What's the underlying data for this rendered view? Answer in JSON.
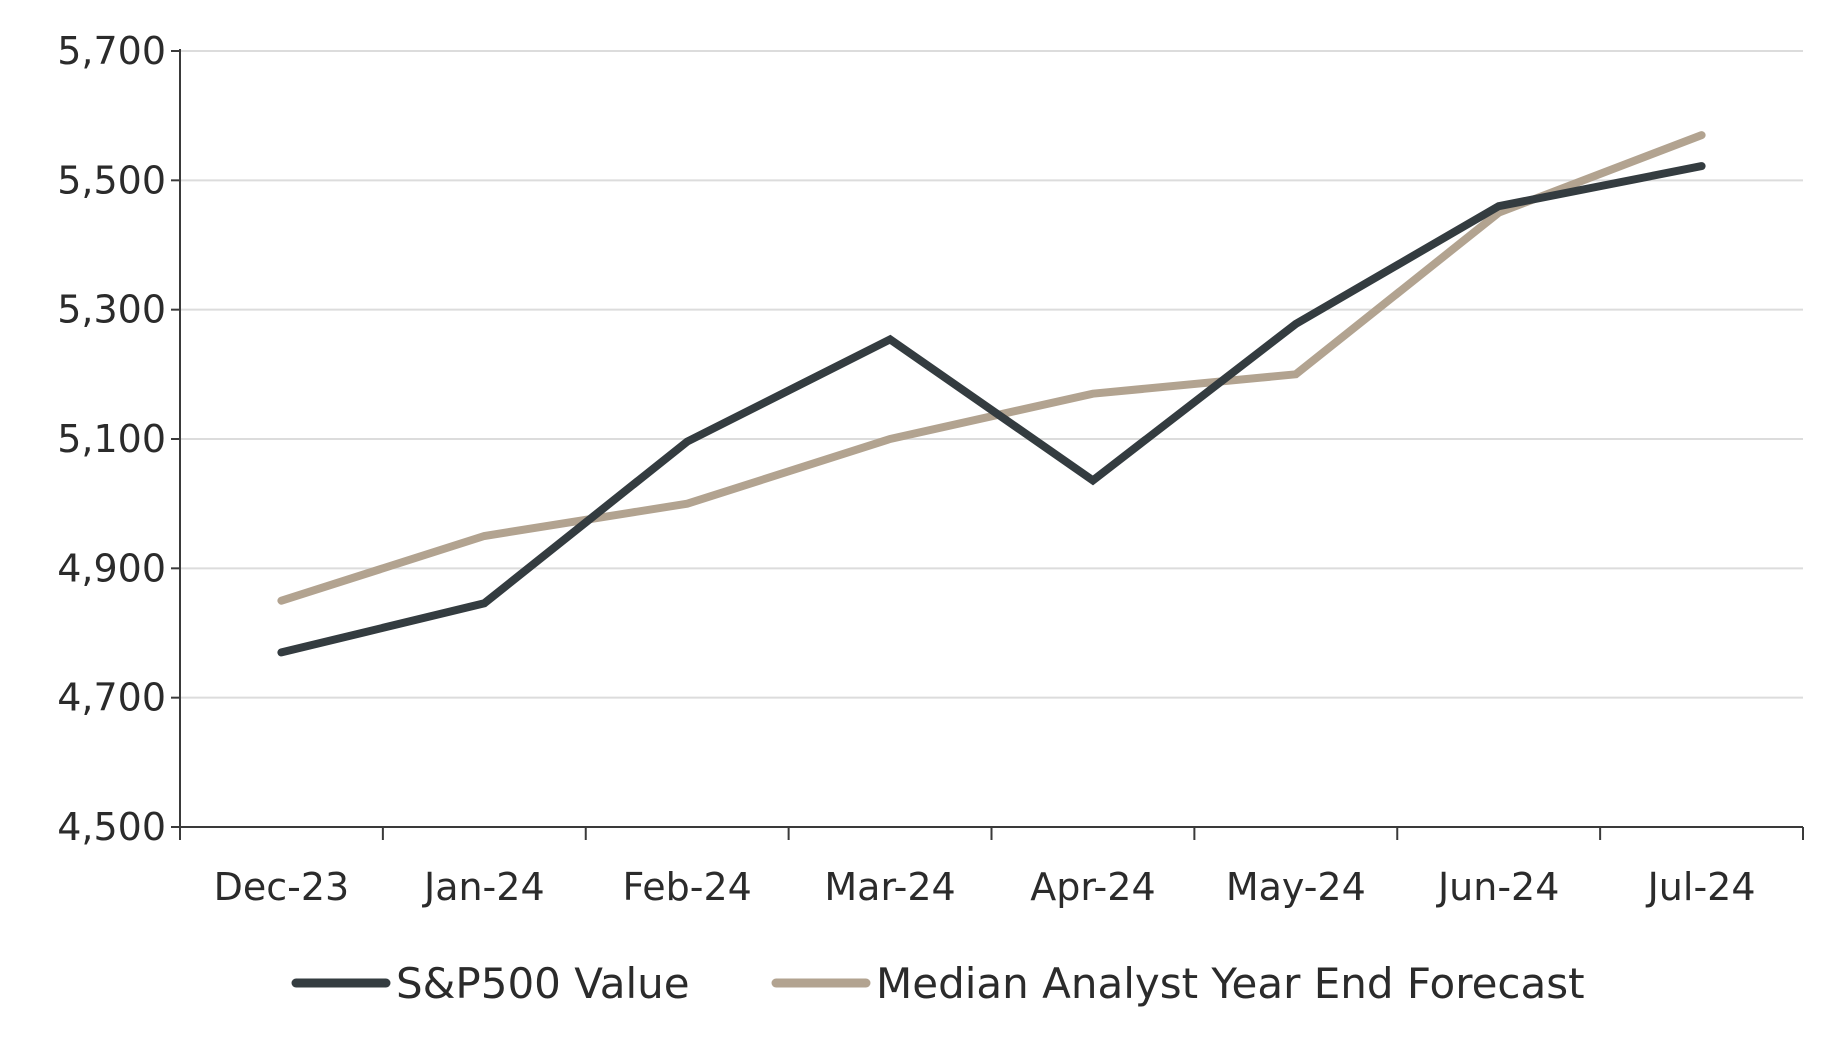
{
  "chart_data": {
    "type": "line",
    "title": "",
    "xlabel": "",
    "ylabel": "",
    "categories": [
      "Dec-23",
      "Jan-24",
      "Feb-24",
      "Mar-24",
      "Apr-24",
      "May-24",
      "Jun-24",
      "Jul-24"
    ],
    "y_ticks": [
      "4,500",
      "4,700",
      "4,900",
      "5,100",
      "5,300",
      "5,500",
      "5,700"
    ],
    "y_tick_values": [
      4500,
      4700,
      4900,
      5100,
      5300,
      5500,
      5700
    ],
    "ylim": [
      4500,
      5700
    ],
    "grid": true,
    "legend_position": "bottom",
    "series": [
      {
        "name": "S&P500 Value",
        "color": "#343c40",
        "values": [
          4770,
          4846,
          5096,
          5254,
          5036,
          5278,
          5460,
          5522
        ]
      },
      {
        "name": "Median Analyst Year End Forecast",
        "color": "#b2a390",
        "values": [
          4850,
          4950,
          5000,
          5100,
          5170,
          5200,
          5450,
          5570
        ]
      }
    ]
  }
}
